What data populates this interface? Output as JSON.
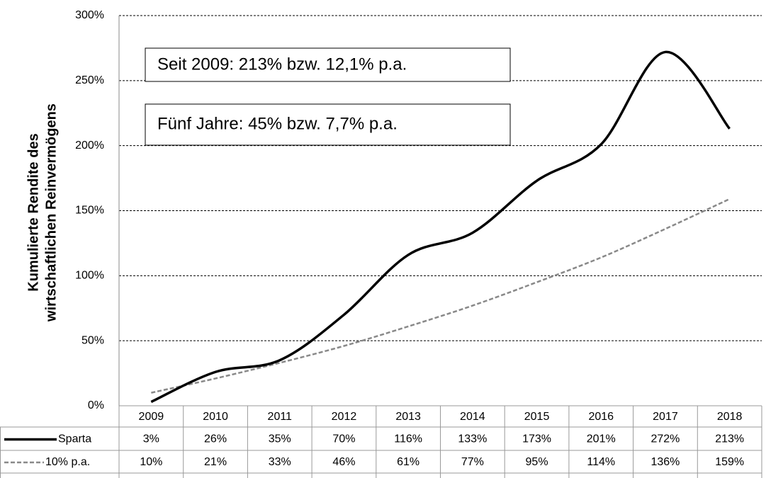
{
  "chart_data": {
    "type": "line",
    "ylabel": [
      "Kumulierte Rendite des",
      "wirtschaftlichen Reinvermögens"
    ],
    "annotations": [
      "Seit 2009: 213% bzw. 12,1% p.a.",
      "Fünf Jahre: 45% bzw. 7,7% p.a."
    ],
    "categories": [
      "2009",
      "2010",
      "2011",
      "2012",
      "2013",
      "2014",
      "2015",
      "2016",
      "2017",
      "2018"
    ],
    "series": [
      {
        "name": "Sparta",
        "color": "#000000",
        "values": [
          3,
          26,
          35,
          70,
          116,
          133,
          173,
          201,
          272,
          213
        ],
        "value_labels": [
          "3%",
          "26%",
          "35%",
          "70%",
          "116%",
          "133%",
          "173%",
          "201%",
          "272%",
          "213%"
        ]
      },
      {
        "name": "10% p.a.",
        "color": "#898989",
        "values": [
          10,
          21,
          33,
          46,
          61,
          77,
          95,
          114,
          136,
          159
        ],
        "value_labels": [
          "10%",
          "21%",
          "33%",
          "46%",
          "61%",
          "77%",
          "95%",
          "114%",
          "136%",
          "159%"
        ]
      }
    ],
    "ylim": [
      0,
      300
    ],
    "yticks": [
      {
        "value": 0,
        "label": "0%"
      },
      {
        "value": 50,
        "label": "50%"
      },
      {
        "value": 100,
        "label": "100%"
      },
      {
        "value": 150,
        "label": "150%"
      },
      {
        "value": 200,
        "label": "200%"
      },
      {
        "value": 250,
        "label": "250%"
      },
      {
        "value": 300,
        "label": "300%"
      }
    ],
    "grid": true
  }
}
